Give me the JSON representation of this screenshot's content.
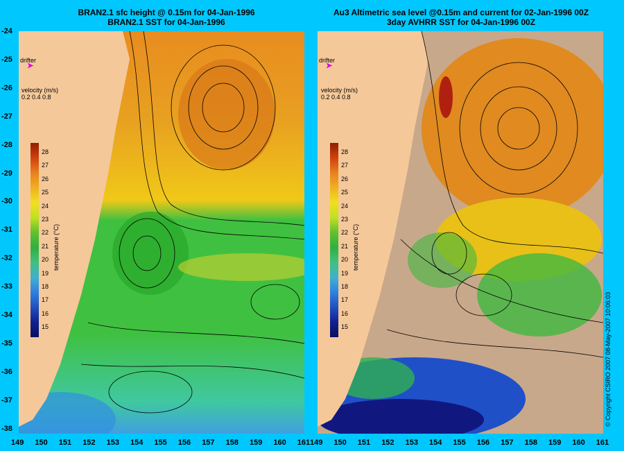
{
  "left_title": {
    "line1": "BRAN2.1 sfc height @ 0.15m for 04-Jan-1996",
    "line2": "BRAN2.1 SST for 04-Jan-1996"
  },
  "right_title": {
    "line1": "Au3 Altimetric sea level  @0.15m and current for 02-Jan-1996 00Z",
    "line2": "3day AVHRR SST for 04-Jan-1996 00Z"
  },
  "latitudes": [
    "-24",
    "-25",
    "-26",
    "-27",
    "-28",
    "-29",
    "-30",
    "-31",
    "-32",
    "-33",
    "-34",
    "-35",
    "-36",
    "-37",
    "-38"
  ],
  "longitudes": [
    "149",
    "150",
    "151",
    "152",
    "153",
    "154",
    "155",
    "156",
    "157",
    "158",
    "159",
    "160",
    "161"
  ],
  "drifter_label": "drifter",
  "velocity": {
    "label": "velocity (m/s)",
    "scale": "0.2 0.4 0.8"
  },
  "colorbar": {
    "ticks": [
      "28",
      "27",
      "26",
      "25",
      "24",
      "23",
      "22",
      "21",
      "20",
      "19",
      "18",
      "17",
      "16",
      "15"
    ],
    "label": "temperature (°C)"
  },
  "copyright": "© Copyright CSIRO 2007  08-May-2007 10:06:03",
  "colors": {
    "background": "#00c8ff",
    "land": "#f5c89a",
    "cloud": "#c8a88a",
    "warm": "#e07818",
    "mid": "#f0c020",
    "cool": "#30b830",
    "cold": "#2858d8",
    "marker": "#e000e0"
  }
}
